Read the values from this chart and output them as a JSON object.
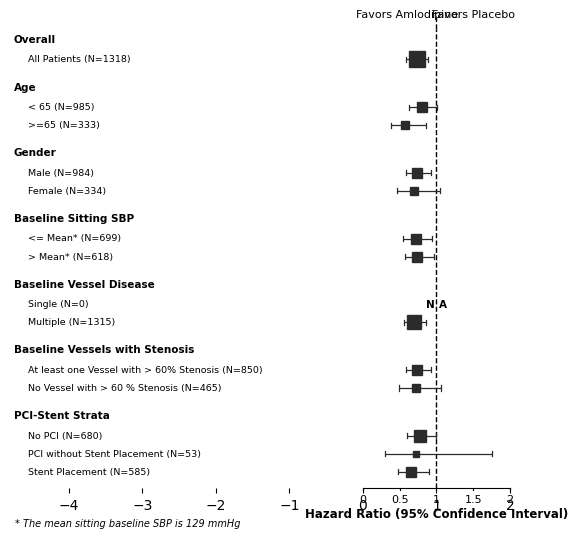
{
  "xlabel": "Hazard Ratio (95% Confidence Interval)",
  "footnote": "* The mean sitting baseline SBP is 129 mmHg",
  "xlim": [
    0.0,
    2.0
  ],
  "xticks": [
    0.0,
    0.5,
    1.0,
    1.5,
    2.0
  ],
  "ref_line": 1.0,
  "groups": [
    {
      "header": "Overall",
      "subgroups": [
        {
          "label": "All Patients (N=1318)",
          "hr": 0.73,
          "ci_low": 0.59,
          "ci_high": 0.88,
          "size": 12,
          "na": false
        }
      ]
    },
    {
      "header": "Age",
      "subgroups": [
        {
          "label": "< 65 (N=985)",
          "hr": 0.8,
          "ci_low": 0.63,
          "ci_high": 1.01,
          "size": 8,
          "na": false
        },
        {
          "label": ">=65 (N=333)",
          "hr": 0.57,
          "ci_low": 0.38,
          "ci_high": 0.86,
          "size": 6,
          "na": false
        }
      ]
    },
    {
      "header": "Gender",
      "subgroups": [
        {
          "label": "Male (N=984)",
          "hr": 0.73,
          "ci_low": 0.58,
          "ci_high": 0.92,
          "size": 8,
          "na": false
        },
        {
          "label": "Female (N=334)",
          "hr": 0.7,
          "ci_low": 0.46,
          "ci_high": 1.05,
          "size": 6,
          "na": false
        }
      ]
    },
    {
      "header": "Baseline Sitting SBP",
      "subgroups": [
        {
          "label": "<= Mean* (N=699)",
          "hr": 0.72,
          "ci_low": 0.55,
          "ci_high": 0.94,
          "size": 7,
          "na": false
        },
        {
          "label": "> Mean* (N=618)",
          "hr": 0.74,
          "ci_low": 0.57,
          "ci_high": 0.96,
          "size": 7,
          "na": false
        }
      ]
    },
    {
      "header": "Baseline Vessel Disease",
      "subgroups": [
        {
          "label": "Single (N=0)",
          "hr": null,
          "ci_low": null,
          "ci_high": null,
          "size": 0,
          "na": true
        },
        {
          "label": "Multiple (N=1315)",
          "hr": 0.69,
          "ci_low": 0.56,
          "ci_high": 0.86,
          "size": 10,
          "na": false
        }
      ]
    },
    {
      "header": "Baseline Vessels with Stenosis",
      "subgroups": [
        {
          "label": "At least one Vessel with > 60% Stenosis (N=850)",
          "hr": 0.73,
          "ci_low": 0.58,
          "ci_high": 0.92,
          "size": 8,
          "na": false
        },
        {
          "label": "No Vessel with > 60 % Stenosis (N=465)",
          "hr": 0.72,
          "ci_low": 0.49,
          "ci_high": 1.06,
          "size": 6,
          "na": false
        }
      ]
    },
    {
      "header": "PCI-Stent Strata",
      "subgroups": [
        {
          "label": "No PCI (N=680)",
          "hr": 0.77,
          "ci_low": 0.6,
          "ci_high": 0.99,
          "size": 9,
          "na": false
        },
        {
          "label": "PCI without Stent Placement (N=53)",
          "hr": 0.72,
          "ci_low": 0.3,
          "ci_high": 1.75,
          "size": 4,
          "na": false
        },
        {
          "label": "Stent Placement (N=585)",
          "hr": 0.65,
          "ci_low": 0.47,
          "ci_high": 0.9,
          "size": 7,
          "na": false
        }
      ]
    }
  ],
  "favors_left": "Favors Amlodipine",
  "favors_right": "Favors Placebo",
  "marker_color": "#2b2b2b",
  "line_color": "#2b2b2b",
  "bg_color": "#ffffff"
}
